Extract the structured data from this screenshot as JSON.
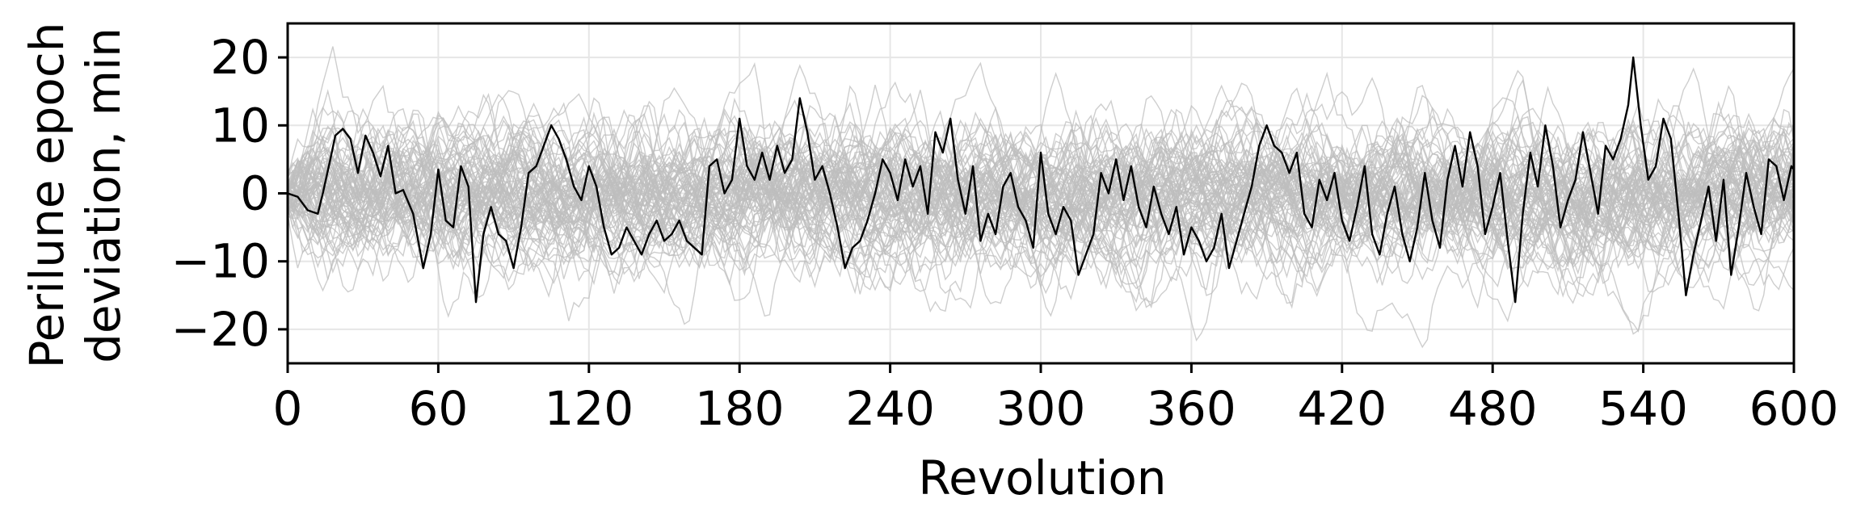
{
  "chart_data": {
    "type": "line",
    "title": "",
    "xlabel": "Revolution",
    "ylabel_lines": [
      "Perilune epoch",
      "deviation, min"
    ],
    "xlim": [
      0,
      600
    ],
    "ylim": [
      -25,
      25
    ],
    "xticks": [
      0,
      60,
      120,
      180,
      240,
      300,
      360,
      420,
      480,
      540,
      600
    ],
    "yticks": [
      20,
      10,
      0,
      -10,
      -20
    ],
    "ytick_labels": [
      "20",
      "10",
      "0",
      "−10",
      "−20"
    ],
    "grid": true,
    "legend": "none",
    "ensemble": {
      "description_visible": false,
      "count": 80,
      "amplitude_min": 10,
      "color": "#bdbdbd"
    },
    "highlight": {
      "color": "#000000",
      "points": [
        [
          0,
          0
        ],
        [
          4,
          -0.5
        ],
        [
          8,
          -2.5
        ],
        [
          12,
          -3
        ],
        [
          14,
          0
        ],
        [
          17,
          5
        ],
        [
          19,
          8.5
        ],
        [
          22,
          9.5
        ],
        [
          25,
          8
        ],
        [
          28,
          3
        ],
        [
          31,
          8.5
        ],
        [
          34,
          6
        ],
        [
          37,
          2.5
        ],
        [
          40,
          7
        ],
        [
          43,
          0
        ],
        [
          46,
          0.5
        ],
        [
          50,
          -3
        ],
        [
          54,
          -11
        ],
        [
          57,
          -6
        ],
        [
          60,
          3.5
        ],
        [
          63,
          -4
        ],
        [
          66,
          -5
        ],
        [
          69,
          4
        ],
        [
          72,
          1
        ],
        [
          75,
          -16
        ],
        [
          78,
          -6
        ],
        [
          81,
          -2
        ],
        [
          84,
          -6
        ],
        [
          87,
          -7
        ],
        [
          90,
          -11
        ],
        [
          93,
          -5
        ],
        [
          96,
          3
        ],
        [
          99,
          4
        ],
        [
          102,
          7
        ],
        [
          105,
          10
        ],
        [
          108,
          8
        ],
        [
          111,
          5
        ],
        [
          114,
          1
        ],
        [
          117,
          -1
        ],
        [
          120,
          4
        ],
        [
          123,
          1
        ],
        [
          126,
          -5
        ],
        [
          129,
          -9
        ],
        [
          132,
          -8
        ],
        [
          135,
          -5
        ],
        [
          138,
          -7
        ],
        [
          141,
          -9
        ],
        [
          144,
          -6
        ],
        [
          147,
          -4
        ],
        [
          150,
          -7
        ],
        [
          153,
          -6
        ],
        [
          156,
          -4
        ],
        [
          159,
          -7
        ],
        [
          162,
          -8
        ],
        [
          165,
          -9
        ],
        [
          168,
          4
        ],
        [
          171,
          5
        ],
        [
          174,
          0
        ],
        [
          177,
          2
        ],
        [
          180,
          11
        ],
        [
          183,
          4
        ],
        [
          186,
          2
        ],
        [
          189,
          6
        ],
        [
          192,
          2
        ],
        [
          195,
          7
        ],
        [
          198,
          3
        ],
        [
          201,
          5
        ],
        [
          204,
          14
        ],
        [
          207,
          9
        ],
        [
          210,
          2
        ],
        [
          213,
          4
        ],
        [
          216,
          0
        ],
        [
          219,
          -5
        ],
        [
          222,
          -11
        ],
        [
          225,
          -8
        ],
        [
          228,
          -7
        ],
        [
          231,
          -4
        ],
        [
          234,
          0
        ],
        [
          237,
          5
        ],
        [
          240,
          3
        ],
        [
          243,
          -1
        ],
        [
          246,
          5
        ],
        [
          249,
          1
        ],
        [
          252,
          4
        ],
        [
          255,
          -3
        ],
        [
          258,
          9
        ],
        [
          261,
          6
        ],
        [
          264,
          11
        ],
        [
          267,
          2
        ],
        [
          270,
          -3
        ],
        [
          273,
          4
        ],
        [
          276,
          -7
        ],
        [
          279,
          -3
        ],
        [
          282,
          -6
        ],
        [
          285,
          1
        ],
        [
          288,
          3
        ],
        [
          291,
          -2
        ],
        [
          294,
          -4
        ],
        [
          297,
          -8
        ],
        [
          300,
          6
        ],
        [
          303,
          -3
        ],
        [
          306,
          -6
        ],
        [
          309,
          -2
        ],
        [
          312,
          -4
        ],
        [
          315,
          -12
        ],
        [
          318,
          -9
        ],
        [
          321,
          -6
        ],
        [
          324,
          3
        ],
        [
          327,
          0
        ],
        [
          330,
          5
        ],
        [
          333,
          -1
        ],
        [
          336,
          4
        ],
        [
          339,
          -2
        ],
        [
          342,
          -5
        ],
        [
          345,
          1
        ],
        [
          348,
          -3
        ],
        [
          351,
          -6
        ],
        [
          354,
          -2
        ],
        [
          357,
          -9
        ],
        [
          360,
          -5
        ],
        [
          363,
          -7
        ],
        [
          366,
          -10
        ],
        [
          369,
          -8
        ],
        [
          372,
          -3
        ],
        [
          375,
          -11
        ],
        [
          378,
          -7
        ],
        [
          381,
          -3
        ],
        [
          384,
          1
        ],
        [
          387,
          7
        ],
        [
          390,
          10
        ],
        [
          393,
          7
        ],
        [
          396,
          6
        ],
        [
          399,
          3
        ],
        [
          402,
          6
        ],
        [
          405,
          -3
        ],
        [
          408,
          -5
        ],
        [
          411,
          2
        ],
        [
          414,
          -1
        ],
        [
          417,
          3
        ],
        [
          420,
          -4
        ],
        [
          423,
          -7
        ],
        [
          426,
          -2
        ],
        [
          429,
          4
        ],
        [
          432,
          -6
        ],
        [
          435,
          -9
        ],
        [
          438,
          -3
        ],
        [
          441,
          1
        ],
        [
          444,
          -6
        ],
        [
          447,
          -10
        ],
        [
          450,
          -5
        ],
        [
          453,
          3
        ],
        [
          456,
          -4
        ],
        [
          459,
          -8
        ],
        [
          462,
          2
        ],
        [
          465,
          7
        ],
        [
          468,
          1
        ],
        [
          471,
          9
        ],
        [
          474,
          4
        ],
        [
          477,
          -6
        ],
        [
          480,
          -2
        ],
        [
          483,
          3
        ],
        [
          486,
          -7
        ],
        [
          489,
          -16
        ],
        [
          492,
          -3
        ],
        [
          495,
          6
        ],
        [
          498,
          1
        ],
        [
          501,
          10
        ],
        [
          504,
          4
        ],
        [
          507,
          -5
        ],
        [
          510,
          -1
        ],
        [
          513,
          2
        ],
        [
          516,
          9
        ],
        [
          519,
          3
        ],
        [
          522,
          -3
        ],
        [
          525,
          7
        ],
        [
          528,
          5
        ],
        [
          531,
          8
        ],
        [
          534,
          13
        ],
        [
          536,
          20
        ],
        [
          539,
          10
        ],
        [
          542,
          2
        ],
        [
          545,
          4
        ],
        [
          548,
          11
        ],
        [
          551,
          8
        ],
        [
          554,
          -3
        ],
        [
          557,
          -15
        ],
        [
          560,
          -9
        ],
        [
          563,
          -4
        ],
        [
          566,
          1
        ],
        [
          569,
          -7
        ],
        [
          572,
          2
        ],
        [
          575,
          -12
        ],
        [
          578,
          -5
        ],
        [
          581,
          3
        ],
        [
          584,
          -2
        ],
        [
          587,
          -6
        ],
        [
          590,
          5
        ],
        [
          593,
          4
        ],
        [
          596,
          -1
        ],
        [
          599,
          4
        ],
        [
          600,
          3.5
        ]
      ]
    }
  }
}
